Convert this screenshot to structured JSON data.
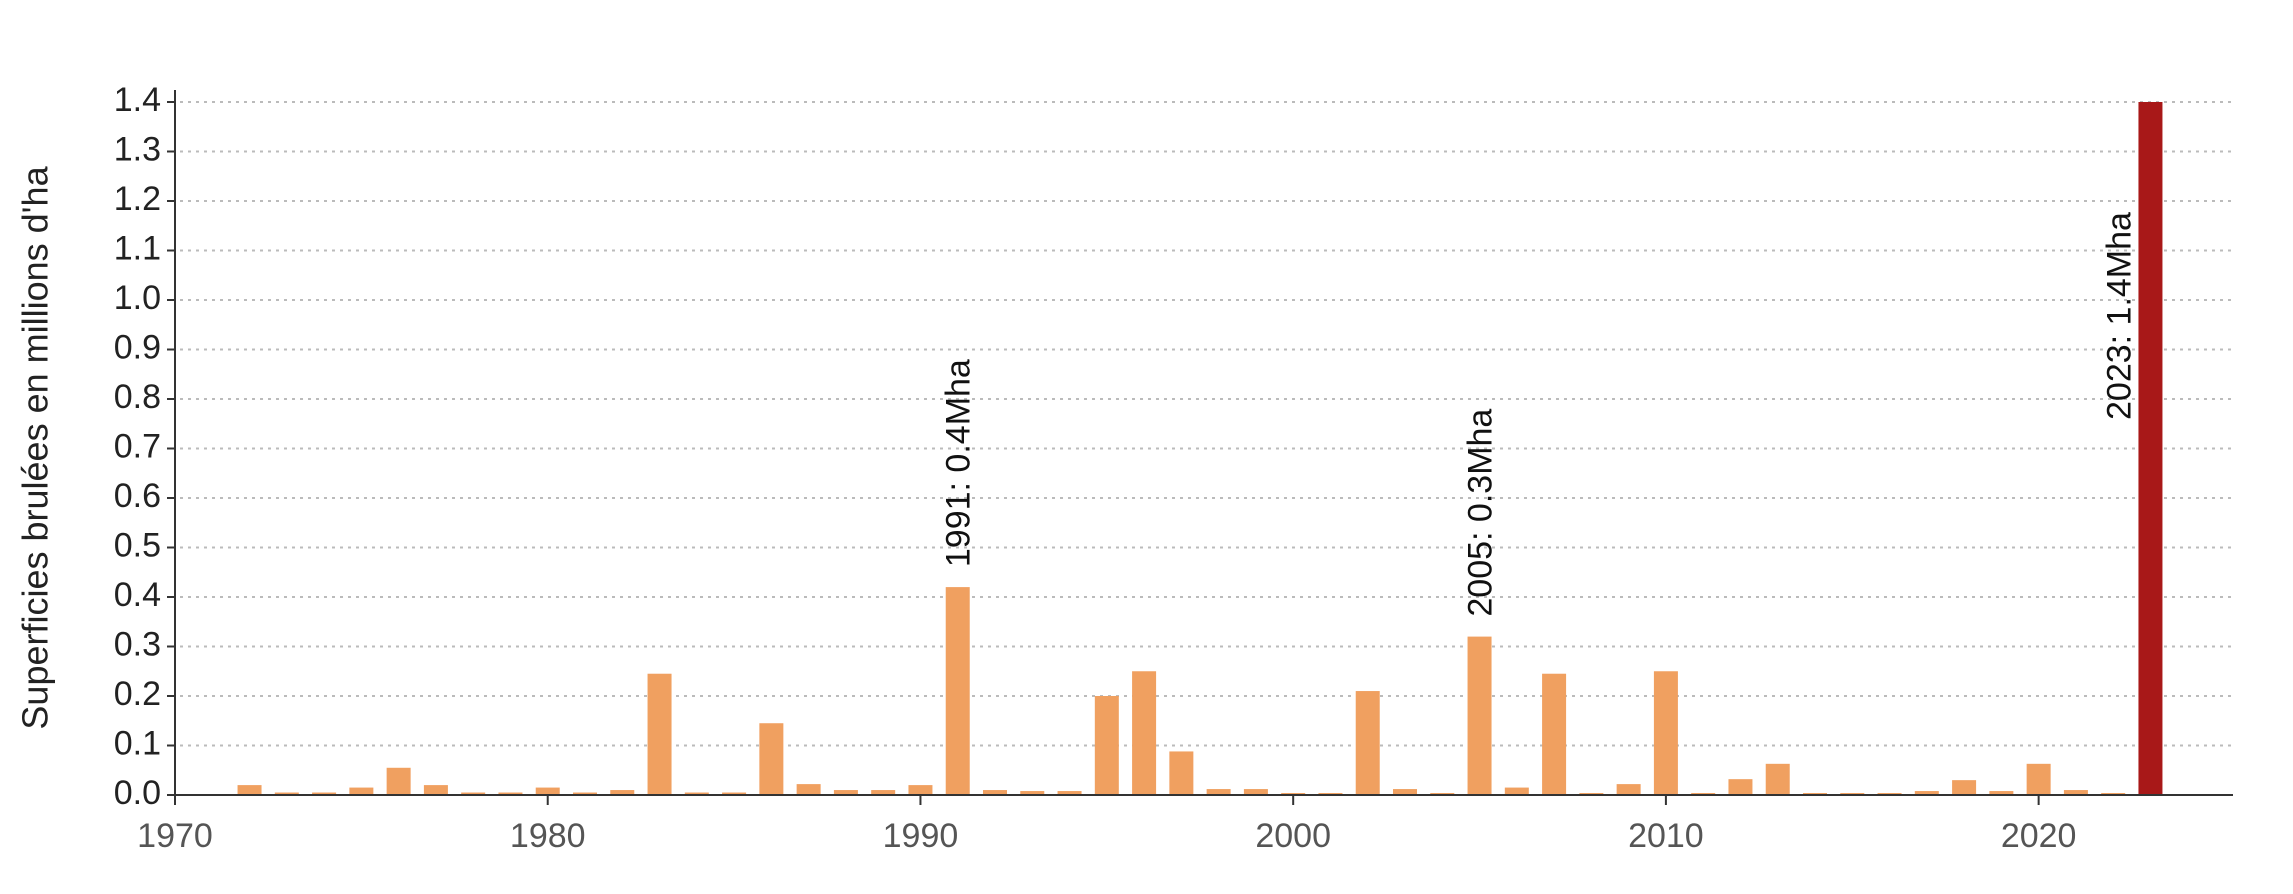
{
  "chart_data": {
    "type": "bar",
    "title": "",
    "xlabel": "",
    "ylabel": "Superficies brulées en millions d'ha",
    "xlim": [
      1970,
      2025
    ],
    "ylim": [
      0,
      1.4
    ],
    "yticks": [
      "0.0",
      "0.1",
      "0.2",
      "0.3",
      "0.4",
      "0.5",
      "0.6",
      "0.7",
      "0.8",
      "0.9",
      "1.0",
      "1.1",
      "1.2",
      "1.3",
      "1.4"
    ],
    "xticks": [
      "1970",
      "1980",
      "1990",
      "2000",
      "2010",
      "2020"
    ],
    "grid": "horizontal dotted",
    "colors": {
      "default_bar": "#f0a060",
      "highlight_bar": "#a81818",
      "grid": "#bbbbbb",
      "axis": "#333333"
    },
    "highlight_year": 2023,
    "series": [
      {
        "x": [
          1972,
          1973,
          1974,
          1975,
          1976,
          1977,
          1978,
          1979,
          1980,
          1981,
          1982,
          1983,
          1984,
          1985,
          1986,
          1987,
          1988,
          1989,
          1990,
          1991,
          1992,
          1993,
          1994,
          1995,
          1996,
          1997,
          1998,
          1999,
          2000,
          2001,
          2002,
          2003,
          2004,
          2005,
          2006,
          2007,
          2008,
          2009,
          2010,
          2011,
          2012,
          2013,
          2014,
          2015,
          2016,
          2017,
          2018,
          2019,
          2020,
          2021,
          2022,
          2023
        ],
        "values": [
          0.02,
          0.005,
          0.005,
          0.015,
          0.055,
          0.02,
          0.005,
          0.005,
          0.015,
          0.005,
          0.01,
          0.245,
          0.005,
          0.005,
          0.145,
          0.022,
          0.01,
          0.01,
          0.02,
          0.42,
          0.01,
          0.008,
          0.008,
          0.2,
          0.25,
          0.088,
          0.012,
          0.012,
          0.004,
          0.004,
          0.21,
          0.012,
          0.004,
          0.32,
          0.015,
          0.245,
          0.004,
          0.022,
          0.25,
          0.004,
          0.032,
          0.063,
          0.004,
          0.004,
          0.004,
          0.008,
          0.03,
          0.008,
          0.063,
          0.01,
          0.004,
          1.4
        ]
      }
    ],
    "annotations": [
      {
        "x": 1991,
        "text": "1991: 0.4Mha"
      },
      {
        "x": 2005,
        "text": "2005: 0.3Mha"
      },
      {
        "x": 2023,
        "text": "2023: 1.4Mha"
      }
    ]
  }
}
